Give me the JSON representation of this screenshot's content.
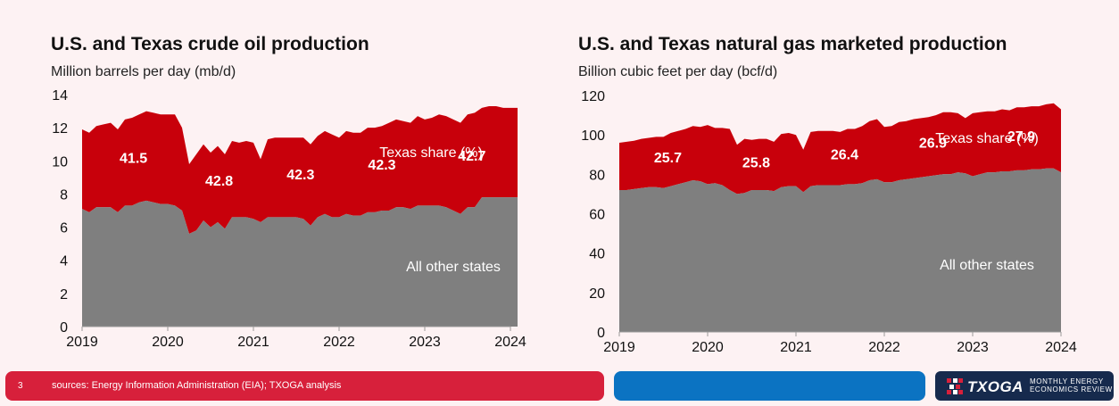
{
  "charts": [
    {
      "title": "U.S. and Texas crude oil production",
      "unit": "Million barrels per day (mb/d)",
      "texas_series_label": "Texas share (%)",
      "other_series_label": "All other states",
      "share_labels": [
        "41.5",
        "42.8",
        "42.3",
        "42.3",
        "42.7"
      ]
    },
    {
      "title": "U.S. and Texas natural gas marketed production",
      "unit": "Billion cubic feet per day (bcf/d)",
      "texas_series_label": "Texas share (%)",
      "other_series_label": "All other states",
      "share_labels": [
        "25.7",
        "25.8",
        "26.4",
        "26.9",
        "27.9"
      ]
    }
  ],
  "chart_data": [
    {
      "type": "area",
      "title": "U.S. and Texas crude oil production",
      "ylabel": "Million barrels per day (mb/d)",
      "ylim": [
        0,
        14
      ],
      "yticks": [
        0,
        2,
        4,
        6,
        8,
        10,
        12,
        14
      ],
      "xticks": [
        "2019",
        "2020",
        "2021",
        "2022",
        "2023",
        "2024"
      ],
      "x": [
        2019.0,
        2019.083,
        2019.167,
        2019.25,
        2019.333,
        2019.417,
        2019.5,
        2019.583,
        2019.667,
        2019.75,
        2019.833,
        2019.917,
        2020.0,
        2020.083,
        2020.167,
        2020.25,
        2020.333,
        2020.417,
        2020.5,
        2020.583,
        2020.667,
        2020.75,
        2020.833,
        2020.917,
        2021.0,
        2021.083,
        2021.167,
        2021.25,
        2021.333,
        2021.417,
        2021.5,
        2021.583,
        2021.667,
        2021.75,
        2021.833,
        2021.917,
        2022.0,
        2022.083,
        2022.167,
        2022.25,
        2022.333,
        2022.417,
        2022.5,
        2022.583,
        2022.667,
        2022.75,
        2022.833,
        2022.917,
        2023.0,
        2023.083,
        2023.167,
        2023.25,
        2023.333,
        2023.417,
        2023.5,
        2023.583,
        2023.667,
        2023.75,
        2023.833,
        2023.917,
        2024.0,
        2024.083
      ],
      "series": [
        {
          "name": "All other states",
          "stack_bottom": true,
          "values": [
            7.1,
            6.9,
            7.2,
            7.2,
            7.2,
            6.9,
            7.3,
            7.3,
            7.5,
            7.6,
            7.5,
            7.4,
            7.4,
            7.3,
            7.0,
            5.6,
            5.8,
            6.4,
            6.0,
            6.3,
            5.9,
            6.6,
            6.6,
            6.6,
            6.5,
            6.3,
            6.6,
            6.6,
            6.6,
            6.6,
            6.6,
            6.5,
            6.1,
            6.6,
            6.8,
            6.6,
            6.6,
            6.8,
            6.7,
            6.7,
            6.9,
            6.9,
            7.0,
            7.0,
            7.2,
            7.2,
            7.1,
            7.3,
            7.3,
            7.3,
            7.3,
            7.2,
            7.0,
            6.8,
            7.2,
            7.2,
            7.8,
            7.8,
            7.8,
            7.8,
            7.8,
            7.8
          ]
        },
        {
          "name": "Texas share (%)",
          "stack_top_total": true,
          "values": [
            11.9,
            11.7,
            12.1,
            12.2,
            12.3,
            11.9,
            12.5,
            12.6,
            12.8,
            13.0,
            12.9,
            12.8,
            12.8,
            12.8,
            12.0,
            9.8,
            10.4,
            11.0,
            10.5,
            10.9,
            10.4,
            11.2,
            11.1,
            11.2,
            11.1,
            10.1,
            11.3,
            11.4,
            11.4,
            11.4,
            11.4,
            11.4,
            11.0,
            11.5,
            11.8,
            11.6,
            11.4,
            11.8,
            11.7,
            11.7,
            12.0,
            12.0,
            12.1,
            12.3,
            12.5,
            12.4,
            12.3,
            12.7,
            12.5,
            12.6,
            12.8,
            12.7,
            12.5,
            12.3,
            12.8,
            12.9,
            13.2,
            13.3,
            13.3,
            13.2,
            13.2,
            13.2
          ]
        }
      ],
      "share_labels": [
        {
          "x": 2019.6,
          "value": 41.5
        },
        {
          "x": 2020.6,
          "value": 42.8
        },
        {
          "x": 2021.55,
          "value": 42.3
        },
        {
          "x": 2022.5,
          "value": 42.3
        },
        {
          "x": 2023.55,
          "value": 42.7
        }
      ]
    },
    {
      "type": "area",
      "title": "U.S. and Texas natural gas marketed production",
      "ylabel": "Billion cubic feet per day (bcf/d)",
      "ylim": [
        0,
        120
      ],
      "yticks": [
        0,
        20,
        40,
        60,
        80,
        100,
        120
      ],
      "xticks": [
        "2019",
        "2020",
        "2021",
        "2022",
        "2023",
        "2024"
      ],
      "x": [
        2019.0,
        2019.083,
        2019.167,
        2019.25,
        2019.333,
        2019.417,
        2019.5,
        2019.583,
        2019.667,
        2019.75,
        2019.833,
        2019.917,
        2020.0,
        2020.083,
        2020.167,
        2020.25,
        2020.333,
        2020.417,
        2020.5,
        2020.583,
        2020.667,
        2020.75,
        2020.833,
        2020.917,
        2021.0,
        2021.083,
        2021.167,
        2021.25,
        2021.333,
        2021.417,
        2021.5,
        2021.583,
        2021.667,
        2021.75,
        2021.833,
        2021.917,
        2022.0,
        2022.083,
        2022.167,
        2022.25,
        2022.333,
        2022.417,
        2022.5,
        2022.583,
        2022.667,
        2022.75,
        2022.833,
        2022.917,
        2023.0,
        2023.083,
        2023.167,
        2023.25,
        2023.333,
        2023.417,
        2023.5,
        2023.583,
        2023.667,
        2023.75,
        2023.833,
        2023.917,
        2024.0
      ],
      "series": [
        {
          "name": "All other states",
          "stack_bottom": true,
          "values": [
            72,
            72,
            72.5,
            73,
            73.5,
            73.5,
            73,
            74,
            75,
            76,
            77,
            76.5,
            75,
            75.5,
            74.5,
            72,
            70,
            70.5,
            72,
            72,
            72,
            71.5,
            73.5,
            74,
            74,
            71,
            74,
            74.5,
            74.5,
            74.5,
            74.5,
            75,
            75,
            75.5,
            77,
            77.5,
            76,
            76,
            77,
            77.5,
            78,
            78.5,
            79,
            79.5,
            80,
            80,
            81,
            80.5,
            79,
            80,
            81,
            81,
            81.5,
            81.5,
            82,
            82,
            82.5,
            82.5,
            83,
            83,
            81
          ]
        },
        {
          "name": "Texas share (%)",
          "stack_top_total": true,
          "values": [
            96,
            96.5,
            97,
            98,
            98.5,
            99,
            99,
            101,
            102,
            103,
            104.5,
            104,
            105,
            103.5,
            103.5,
            103,
            95,
            98,
            97.5,
            98,
            98,
            96.5,
            100.5,
            101,
            100,
            92.5,
            101.5,
            102,
            102,
            102,
            101.5,
            103,
            103,
            104.5,
            107,
            108,
            104,
            104.5,
            106.5,
            107,
            108,
            108.5,
            109,
            110,
            111.5,
            111.5,
            111,
            108.5,
            111,
            111.5,
            112,
            112,
            113,
            112.5,
            114,
            114,
            114.5,
            114.5,
            115.5,
            116,
            113
          ]
        }
      ],
      "share_labels": [
        {
          "x": 2019.55,
          "value": 25.7
        },
        {
          "x": 2020.55,
          "value": 25.8
        },
        {
          "x": 2021.55,
          "value": 26.4
        },
        {
          "x": 2022.55,
          "value": 26.9
        },
        {
          "x": 2023.55,
          "value": 27.9
        }
      ]
    }
  ],
  "footer": {
    "page_number": "3",
    "source": "sources: Energy Information Administration (EIA); TXOGA analysis",
    "logo_word": "TXOGA",
    "logo_tagline_1": "MONTHLY ENERGY",
    "logo_tagline_2": "ECONOMICS REVIEW"
  },
  "colors": {
    "texas": "#c8000b",
    "other_states": "#7f7f7f",
    "background": "#fdf2f3",
    "footer_red": "#d7203b",
    "footer_blue": "#0b73c2",
    "footer_navy": "#162a4d"
  }
}
